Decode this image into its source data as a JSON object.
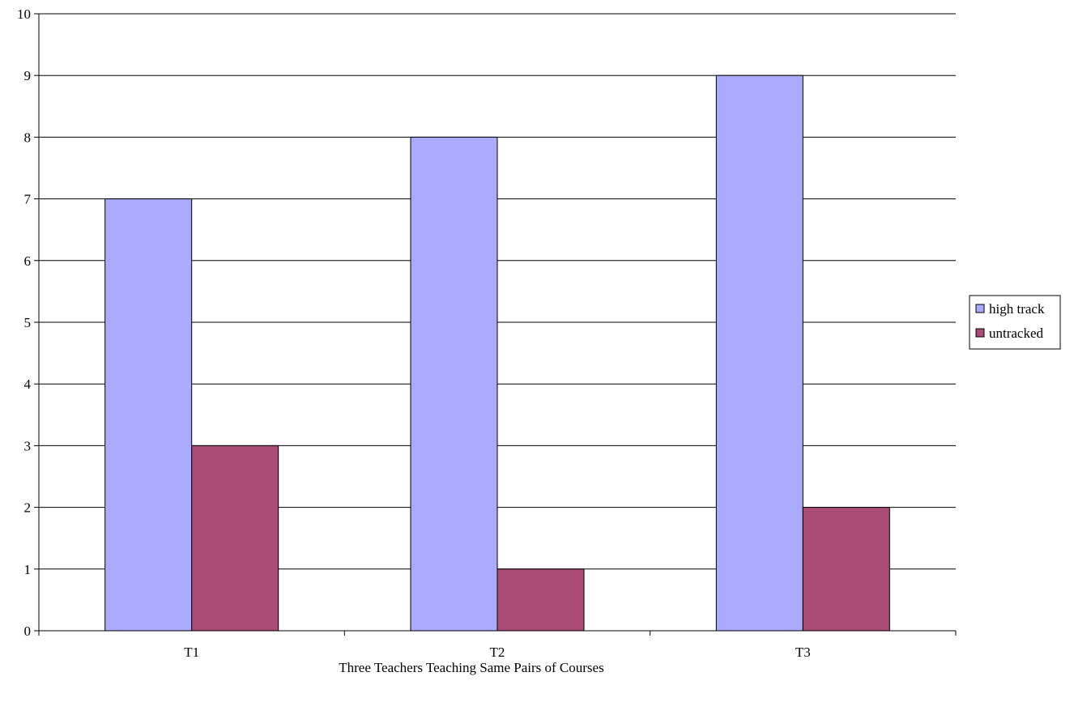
{
  "chart_data": {
    "type": "bar",
    "categories": [
      "T1",
      "T2",
      "T3"
    ],
    "series": [
      {
        "name": "high track",
        "values": [
          7,
          8,
          9
        ],
        "color": "#aaaaff"
      },
      {
        "name": "untracked",
        "values": [
          3,
          1,
          2
        ],
        "color": "#aa4a76"
      }
    ],
    "title": "",
    "xlabel": "Three Teachers Teaching Same Pairs of Courses",
    "ylabel": "",
    "ylim": [
      0,
      10
    ],
    "yticks": [
      0,
      1,
      2,
      3,
      4,
      5,
      6,
      7,
      8,
      9,
      10
    ],
    "grid": true,
    "legend_position": "right"
  }
}
